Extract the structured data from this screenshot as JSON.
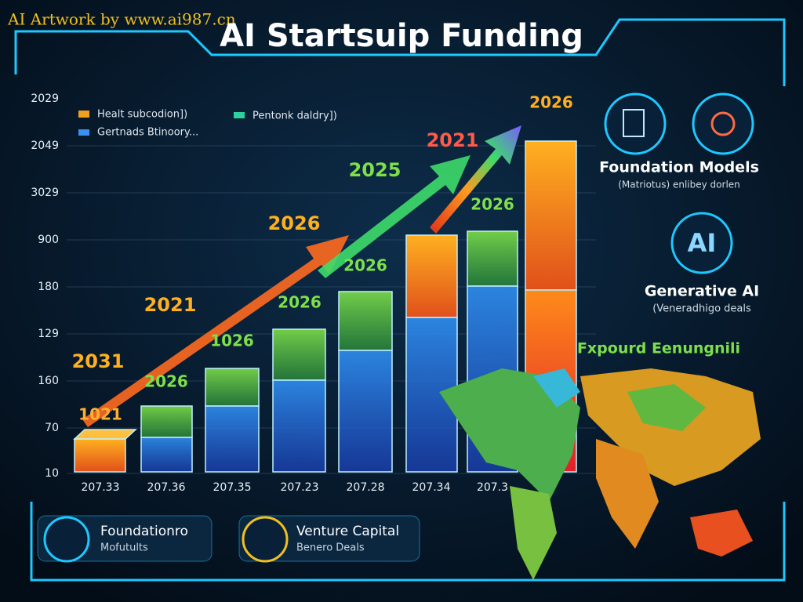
{
  "watermark": "AI Artwork by www.ai987.cn",
  "header": {
    "title": "AI Startsuip Funding"
  },
  "legend": {
    "items": [
      "Healt subcodion])",
      "Pentonk daldry])",
      "Gertnads Btinoory..."
    ]
  },
  "y_labels": [
    "2029",
    "2049",
    "3029",
    "900",
    "180",
    "129",
    "160",
    "70",
    "10"
  ],
  "x_labels": [
    "207.33",
    "207.36",
    "207.35",
    "207.23",
    "207.28",
    "207.34",
    "207.3"
  ],
  "bar_labels": [
    "1021",
    "2026",
    "1026",
    "2026",
    "2026",
    "2026",
    "2026"
  ],
  "arrow_labels": [
    "2031",
    "2021",
    "2026",
    "2025",
    "2021",
    "2026"
  ],
  "side": {
    "foundation_title": "Foundation Models",
    "foundation_sub": "(Matriotus) enlibey dorlen",
    "ai_badge": "AI",
    "generative_title": "Generative AI",
    "generative_sub": "(Veneradhigo deals",
    "map_title": "Fxpourd Eenungnili"
  },
  "cards": [
    {
      "title": "Foundationro",
      "sub": "Mofutults"
    },
    {
      "title": "Venture Capital",
      "sub": "Benero Deals"
    }
  ]
}
